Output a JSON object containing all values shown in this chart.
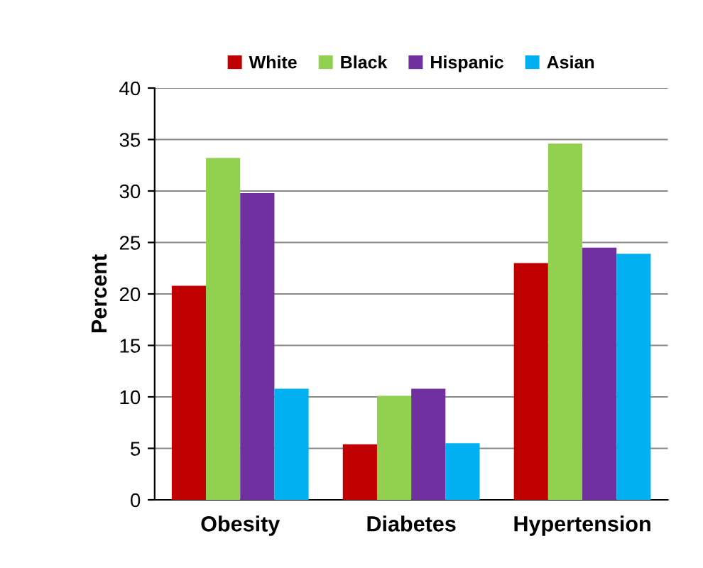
{
  "chart_data": {
    "type": "bar",
    "ylabel": "Percent",
    "categories": [
      "Obesity",
      "Diabetes",
      "Hypertension"
    ],
    "series": [
      {
        "name": "White",
        "color": "#c00000",
        "values": [
          20.8,
          5.4,
          23.0
        ]
      },
      {
        "name": "Black",
        "color": "#92d050",
        "values": [
          33.2,
          10.1,
          34.6
        ]
      },
      {
        "name": "Hispanic",
        "color": "#7030a0",
        "values": [
          29.8,
          10.8,
          24.5
        ]
      },
      {
        "name": "Asian",
        "color": "#00b0f0",
        "values": [
          10.8,
          5.5,
          23.9
        ]
      }
    ],
    "ylim": [
      0,
      40
    ],
    "yticks": [
      0,
      5,
      10,
      15,
      20,
      25,
      30,
      35,
      40
    ],
    "grid": "y",
    "legend": "top"
  }
}
